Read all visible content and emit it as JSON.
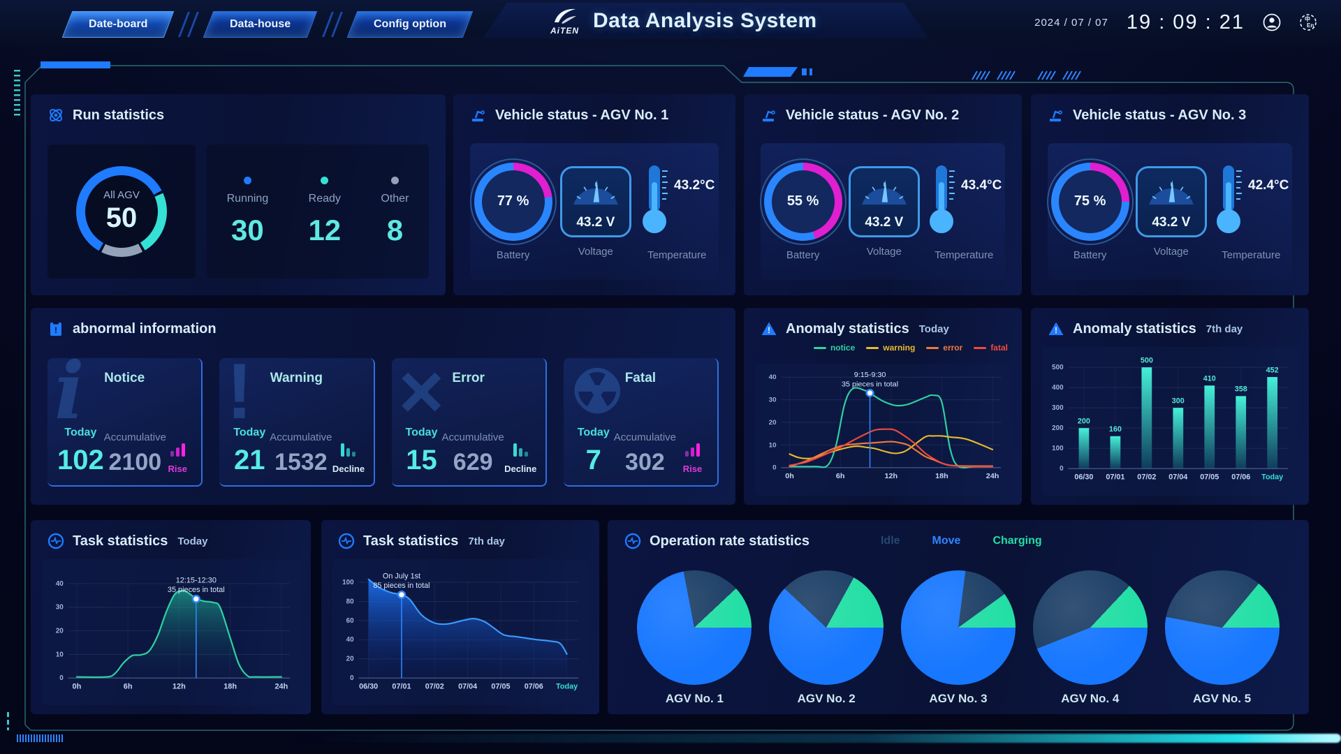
{
  "header": {
    "tabs": [
      {
        "label": "Date-board",
        "active": true
      },
      {
        "label": "Data-house",
        "active": false
      },
      {
        "label": "Config option",
        "active": false
      }
    ],
    "logo": "AiTEN",
    "title": "Data Analysis System",
    "date": "2024 / 07 / 07",
    "time": "19 : 09 : 21"
  },
  "run": {
    "title": "Run statistics",
    "all_label": "All AGV",
    "all_value": "50",
    "items": [
      {
        "label": "Running",
        "value": "30",
        "color": "#1f7bff"
      },
      {
        "label": "Ready",
        "value": "12",
        "color": "#35e0d4"
      },
      {
        "label": "Other",
        "value": "8",
        "color": "#93a2b8"
      }
    ],
    "donut": {
      "segments": [
        60,
        24,
        16
      ],
      "colors": [
        "#1f7bff",
        "#35e0d4",
        "#93a2b8"
      ],
      "from_deg": 210
    }
  },
  "vehicle": {
    "labels": [
      "Battery",
      "Voltage",
      "Temperature"
    ],
    "panels": [
      {
        "title": "Vehicle status - AGV No. 1",
        "battery": "77 %",
        "battery_pct": 77,
        "voltage": "43.2 V",
        "temperature": "43.2°C"
      },
      {
        "title": "Vehicle status - AGV No. 2",
        "battery": "55 %",
        "battery_pct": 55,
        "voltage": "43.2 V",
        "temperature": "43.4°C"
      },
      {
        "title": "Vehicle status - AGV No. 3",
        "battery": "75 %",
        "battery_pct": 75,
        "voltage": "43.2 V",
        "temperature": "42.4°C"
      }
    ]
  },
  "abnormal": {
    "title": "abnormal information",
    "cards": [
      {
        "name": "Notice",
        "today_label": "Today",
        "today": "102",
        "acc_label": "Accumulative",
        "acc": "2100",
        "trend": "Rise",
        "trend_dir": "rise"
      },
      {
        "name": "Warning",
        "today_label": "Today",
        "today": "21",
        "acc_label": "Accumulative",
        "acc": "1532",
        "trend": "Decline",
        "trend_dir": "decline"
      },
      {
        "name": "Error",
        "today_label": "Today",
        "today": "15",
        "acc_label": "Accumulative",
        "acc": "629",
        "trend": "Decline",
        "trend_dir": "decline"
      },
      {
        "name": "Fatal",
        "today_label": "Today",
        "today": "7",
        "acc_label": "Accumulative",
        "acc": "302",
        "trend": "Rise",
        "trend_dir": "rise"
      }
    ]
  },
  "chart_data": [
    {
      "id": "anomaly_today",
      "type": "line",
      "title": "Anomaly statistics",
      "subtitle": "Today",
      "xrange": [
        -1,
        25
      ],
      "xticks": [
        [
          0,
          "0h"
        ],
        [
          6,
          "6h"
        ],
        [
          12,
          "12h"
        ],
        [
          18,
          "18h"
        ],
        [
          24,
          "24h"
        ]
      ],
      "ylim": [
        0,
        40
      ],
      "yticks": [
        0,
        10,
        20,
        30,
        40
      ],
      "grid": true,
      "legend_position": "top-right",
      "series": [
        {
          "name": "notice",
          "color": "#2fd3a2",
          "points": [
            [
              0,
              0.5
            ],
            [
              3,
              0.5
            ],
            [
              4.5,
              1
            ],
            [
              5.5,
              10
            ],
            [
              6.5,
              28
            ],
            [
              7.5,
              35
            ],
            [
              9,
              34
            ],
            [
              9.5,
              33
            ],
            [
              11,
              29.5
            ],
            [
              12.5,
              27.5
            ],
            [
              14,
              28
            ],
            [
              16,
              31
            ],
            [
              17,
              32
            ],
            [
              18,
              29
            ],
            [
              19,
              8
            ],
            [
              20,
              0.5
            ],
            [
              22,
              0.5
            ],
            [
              24,
              0.5
            ]
          ]
        },
        {
          "name": "warning",
          "color": "#e8bb2e",
          "points": [
            [
              0,
              6
            ],
            [
              1,
              4.5
            ],
            [
              2,
              4
            ],
            [
              3,
              4.5
            ],
            [
              5,
              7
            ],
            [
              7,
              9
            ],
            [
              8,
              9.5
            ],
            [
              9,
              9
            ],
            [
              10,
              8.5
            ],
            [
              12,
              6.5
            ],
            [
              13,
              6.5
            ],
            [
              14,
              8
            ],
            [
              16,
              13.5
            ],
            [
              17,
              14
            ],
            [
              18,
              14
            ],
            [
              19,
              13.5
            ],
            [
              21,
              12.5
            ],
            [
              24,
              8
            ]
          ]
        },
        {
          "name": "error",
          "color": "#f07a3c",
          "points": [
            [
              0,
              0.5
            ],
            [
              2,
              3
            ],
            [
              4,
              6.5
            ],
            [
              6,
              9.5
            ],
            [
              8,
              10.5
            ],
            [
              10,
              11
            ],
            [
              12,
              11.5
            ],
            [
              13,
              11
            ],
            [
              14,
              10
            ],
            [
              15,
              7.5
            ],
            [
              16,
              5
            ],
            [
              17,
              3.5
            ],
            [
              18,
              2
            ],
            [
              19,
              1
            ],
            [
              21,
              0.7
            ],
            [
              24,
              0.7
            ]
          ]
        },
        {
          "name": "fatal",
          "color": "#ef4b3c",
          "points": [
            [
              0,
              1
            ],
            [
              2,
              2.5
            ],
            [
              4,
              5.5
            ],
            [
              6,
              9
            ],
            [
              8,
              13
            ],
            [
              10,
              16.5
            ],
            [
              11.5,
              17
            ],
            [
              12.5,
              16.5
            ],
            [
              14,
              13
            ],
            [
              15,
              10
            ],
            [
              16,
              6.5
            ],
            [
              17,
              4
            ],
            [
              18,
              2
            ],
            [
              19,
              1
            ],
            [
              21,
              0.5
            ],
            [
              24,
              0.5
            ]
          ]
        }
      ],
      "annotation": {
        "x": 9.5,
        "y": 33,
        "line1": "9:15-9:30",
        "line2": "35 pieces in total"
      }
    },
    {
      "id": "anomaly_7day",
      "type": "bar",
      "title": "Anomaly statistics",
      "subtitle": "7th day",
      "categories": [
        "06/30",
        "07/01",
        "07/02",
        "07/04",
        "07/05",
        "07/06",
        "Today"
      ],
      "values": [
        200,
        160,
        500,
        300,
        410,
        358,
        452
      ],
      "ylim": [
        0,
        500
      ],
      "yticks": [
        0,
        100,
        200,
        300,
        400,
        500
      ],
      "grid": true,
      "bar_color_top": "#45f0d8",
      "bar_color_bottom": "#0f3c5c",
      "highlight_last_xtick": true
    },
    {
      "id": "task_today",
      "type": "area",
      "title": "Task statistics",
      "subtitle": "Today",
      "xrange": [
        -1,
        25
      ],
      "xticks": [
        [
          0,
          "0h"
        ],
        [
          6,
          "6h"
        ],
        [
          12,
          "12h"
        ],
        [
          18,
          "18h"
        ],
        [
          24,
          "24h"
        ]
      ],
      "ylim": [
        0,
        40
      ],
      "yticks": [
        0,
        10,
        20,
        30,
        40
      ],
      "grid": true,
      "color": "#2fd3a2",
      "fill_top": "rgba(35,210,170,0.55)",
      "fill_bottom": "rgba(8,40,80,0.03)",
      "points": [
        [
          0,
          0.5
        ],
        [
          3.5,
          0.5
        ],
        [
          4.5,
          2
        ],
        [
          5.5,
          6.5
        ],
        [
          6.5,
          9.5
        ],
        [
          7.5,
          9.8
        ],
        [
          8.5,
          11.5
        ],
        [
          9.5,
          18
        ],
        [
          10.5,
          28
        ],
        [
          11.5,
          35.5
        ],
        [
          12.5,
          37
        ],
        [
          13.5,
          35
        ],
        [
          14,
          33.5
        ],
        [
          15,
          32.5
        ],
        [
          16,
          32
        ],
        [
          16.8,
          30
        ],
        [
          18,
          17
        ],
        [
          19,
          6
        ],
        [
          20,
          1
        ],
        [
          21,
          0.5
        ],
        [
          24,
          0.5
        ]
      ],
      "annotation": {
        "x": 14,
        "y": 33.5,
        "line1": "12:15-12:30",
        "line2": "35 pieces in total"
      }
    },
    {
      "id": "task_7day",
      "type": "area",
      "title": "Task statistics",
      "subtitle": "7th day",
      "xrange": [
        -0.3,
        6.35
      ],
      "xticks": [
        [
          0,
          "06/30"
        ],
        [
          1,
          "07/01"
        ],
        [
          2,
          "07/02"
        ],
        [
          3,
          "07/04"
        ],
        [
          4,
          "07/05"
        ],
        [
          5,
          "07/06"
        ],
        [
          6,
          "Today"
        ]
      ],
      "ylim": [
        0,
        100
      ],
      "yticks": [
        0,
        20,
        40,
        60,
        80,
        100
      ],
      "grid": true,
      "highlight_last_xtick": true,
      "color": "#3b9bff",
      "fill_top": "rgba(30,120,255,0.85)",
      "fill_bottom": "rgba(10,40,120,0.06)",
      "points": [
        [
          0,
          103
        ],
        [
          0.35,
          94
        ],
        [
          0.7,
          89
        ],
        [
          1,
          87
        ],
        [
          1.25,
          82
        ],
        [
          1.6,
          66
        ],
        [
          2,
          57.5
        ],
        [
          2.4,
          56.5
        ],
        [
          2.9,
          60.5
        ],
        [
          3.2,
          62
        ],
        [
          3.5,
          59
        ],
        [
          3.8,
          52
        ],
        [
          4.1,
          45
        ],
        [
          4.5,
          43
        ],
        [
          5,
          40.5
        ],
        [
          5.5,
          38.5
        ],
        [
          5.8,
          36
        ],
        [
          6,
          25
        ]
      ],
      "annotation": {
        "x": 1,
        "y": 87,
        "line1": "On July 1st",
        "line2": "85 pieces in total"
      }
    },
    {
      "id": "operation_rate",
      "type": "pie-group",
      "title": "Operation rate statistics",
      "legend": [
        {
          "label": "Idle",
          "color": "#1d3f66",
          "text_color": "#27496e"
        },
        {
          "label": "Move",
          "color": "#1777ff",
          "text_color": "#2f86ff"
        },
        {
          "label": "Charging",
          "color": "#23dfa5",
          "text_color": "#23dfa5"
        }
      ],
      "pies": [
        {
          "label": "AGV No. 1",
          "move": 72,
          "idle": 16,
          "charging": 12
        },
        {
          "label": "AGV No. 2",
          "move": 62,
          "idle": 21,
          "charging": 17
        },
        {
          "label": "AGV No. 3",
          "move": 77,
          "idle": 13,
          "charging": 10
        },
        {
          "label": "AGV No. 4",
          "move": 44,
          "idle": 43,
          "charging": 13
        },
        {
          "label": "AGV No. 5",
          "move": 53,
          "idle": 33,
          "charging": 14
        }
      ]
    }
  ],
  "colors": {
    "accent_blue": "#1f7bff",
    "cyan": "#35e0d4",
    "magenta": "#df1fd0",
    "ring_blue": "#2a86ff",
    "frame_teal": "#3fb8ae"
  }
}
